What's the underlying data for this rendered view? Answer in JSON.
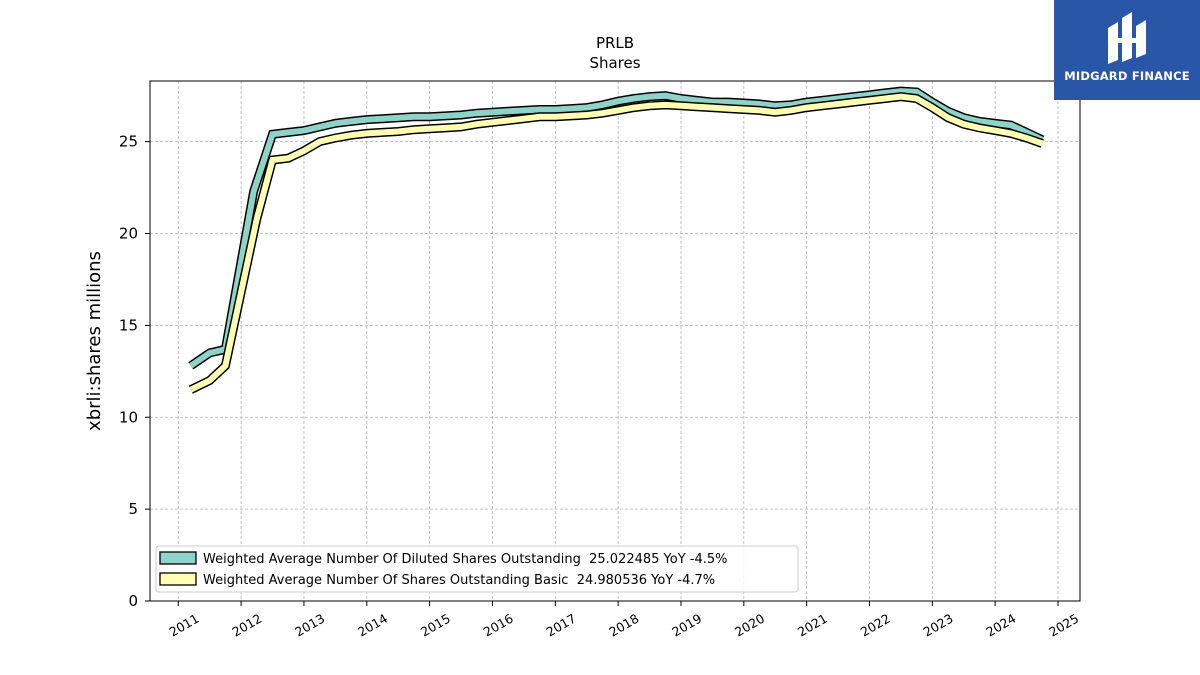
{
  "brand": {
    "name": "MIDGARD FINANCE",
    "color": "#2a56a8"
  },
  "chart_data": {
    "type": "line",
    "title": "PRLB",
    "subtitle": "Shares",
    "xlabel": "",
    "ylabel": "xbrli:shares millions",
    "xlim": [
      2010.55,
      2025.35
    ],
    "ylim": [
      0,
      28.3
    ],
    "x_ticks": [
      "2011",
      "2012",
      "2013",
      "2014",
      "2015",
      "2016",
      "2017",
      "2018",
      "2019",
      "2020",
      "2021",
      "2022",
      "2023",
      "2024",
      "2025"
    ],
    "y_ticks": [
      "0",
      "5",
      "10",
      "15",
      "20",
      "25"
    ],
    "grid": true,
    "legend_position": "lower-left",
    "series": [
      {
        "name": "Weighted Average Number Of Diluted Shares Outstanding",
        "legend_label": "Weighted Average Number Of Diluted Shares Outstanding  25.022485 YoY -4.5%",
        "color": "#8dd3c7",
        "x": [
          2011.2,
          2011.5,
          2011.75,
          2012.2,
          2012.5,
          2012.75,
          2013.0,
          2013.25,
          2013.5,
          2013.75,
          2014.0,
          2014.25,
          2014.5,
          2014.75,
          2015.0,
          2015.25,
          2015.5,
          2015.75,
          2016.0,
          2016.25,
          2016.5,
          2016.75,
          2017.0,
          2017.25,
          2017.5,
          2017.75,
          2018.0,
          2018.25,
          2018.5,
          2018.75,
          2019.0,
          2019.25,
          2019.5,
          2019.75,
          2020.0,
          2020.25,
          2020.5,
          2020.75,
          2021.0,
          2021.25,
          2021.5,
          2021.75,
          2022.0,
          2022.25,
          2022.5,
          2022.75,
          2023.0,
          2023.25,
          2023.5,
          2023.75,
          2024.0,
          2024.25,
          2024.5,
          2024.75
        ],
        "y": [
          12.8,
          13.5,
          13.7,
          22.3,
          25.4,
          25.5,
          25.6,
          25.8,
          26.0,
          26.1,
          26.2,
          26.25,
          26.3,
          26.35,
          26.35,
          26.4,
          26.45,
          26.55,
          26.6,
          26.65,
          26.7,
          26.75,
          26.75,
          26.8,
          26.85,
          27.0,
          27.2,
          27.35,
          27.45,
          27.5,
          27.35,
          27.25,
          27.15,
          27.15,
          27.1,
          27.05,
          26.95,
          27.0,
          27.15,
          27.25,
          27.35,
          27.45,
          27.55,
          27.65,
          27.75,
          27.7,
          27.15,
          26.65,
          26.3,
          26.1,
          26.0,
          25.9,
          25.5,
          25.1
        ]
      },
      {
        "name": "Weighted Average Number Of Shares Outstanding Basic",
        "legend_label": "Weighted Average Number Of Shares Outstanding Basic  24.980536 YoY -4.7%",
        "color": "#ffffb3",
        "x": [
          2011.2,
          2011.5,
          2011.75,
          2012.25,
          2012.5,
          2012.75,
          2013.0,
          2013.25,
          2013.5,
          2013.75,
          2014.0,
          2014.25,
          2014.5,
          2014.75,
          2015.0,
          2015.25,
          2015.5,
          2015.75,
          2016.0,
          2016.25,
          2016.5,
          2016.75,
          2017.0,
          2017.25,
          2017.5,
          2017.75,
          2018.0,
          2018.25,
          2018.5,
          2018.75,
          2019.0,
          2019.25,
          2019.5,
          2019.75,
          2020.0,
          2020.25,
          2020.5,
          2020.75,
          2021.0,
          2021.25,
          2021.5,
          2021.75,
          2022.0,
          2022.25,
          2022.5,
          2022.75,
          2023.0,
          2023.25,
          2023.5,
          2023.75,
          2024.0,
          2024.25,
          2024.5,
          2024.75
        ],
        "y": [
          11.5,
          12.0,
          12.8,
          20.8,
          24.0,
          24.1,
          24.5,
          25.0,
          25.2,
          25.35,
          25.45,
          25.5,
          25.55,
          25.65,
          25.7,
          25.75,
          25.8,
          25.95,
          26.05,
          26.15,
          26.25,
          26.35,
          26.35,
          26.4,
          26.45,
          26.55,
          26.7,
          26.85,
          26.95,
          27.0,
          26.95,
          26.9,
          26.85,
          26.8,
          26.75,
          26.7,
          26.6,
          26.7,
          26.85,
          26.95,
          27.05,
          27.15,
          27.25,
          27.35,
          27.45,
          27.35,
          26.85,
          26.3,
          25.95,
          25.75,
          25.6,
          25.45,
          25.2,
          24.9
        ]
      }
    ]
  }
}
